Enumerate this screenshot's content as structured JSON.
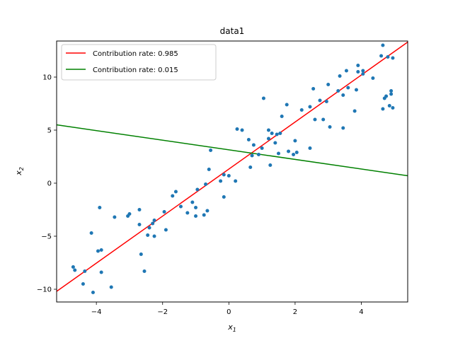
{
  "chart_data": {
    "type": "scatter",
    "title": "data1",
    "xlabel": "x",
    "xlabel_sub": "1",
    "ylabel": "x",
    "ylabel_sub": "2",
    "xlim": [
      -5.2,
      5.4
    ],
    "ylim": [
      -11.2,
      13.4
    ],
    "x_ticks": [
      -4,
      -2,
      0,
      2,
      4
    ],
    "y_ticks": [
      -10,
      -5,
      0,
      5,
      10
    ],
    "grid": false,
    "legend_position": "top-left",
    "colors": {
      "points": "#1f77b4",
      "line1": "#ff0000",
      "line2": "#008000"
    },
    "lines": [
      {
        "name": "Contribution rate: 0.985",
        "color": "#ff0000",
        "x": [
          -5.2,
          5.4
        ],
        "y": [
          -10.2,
          13.3
        ]
      },
      {
        "name": "Contribution rate: 0.015",
        "color": "#008000",
        "x": [
          -5.2,
          5.4
        ],
        "y": [
          5.5,
          0.7
        ]
      }
    ],
    "points": [
      [
        -4.7,
        -7.9
      ],
      [
        -4.65,
        -8.2
      ],
      [
        -4.4,
        -9.5
      ],
      [
        -4.35,
        -8.3
      ],
      [
        -4.15,
        -4.7
      ],
      [
        -4.1,
        -10.3
      ],
      [
        -3.95,
        -6.4
      ],
      [
        -3.9,
        -2.3
      ],
      [
        -3.85,
        -8.4
      ],
      [
        -3.85,
        -6.3
      ],
      [
        -3.55,
        -9.8
      ],
      [
        -3.45,
        -3.2
      ],
      [
        -3.05,
        -3.1
      ],
      [
        -3.0,
        -2.9
      ],
      [
        -2.7,
        -2.5
      ],
      [
        -2.7,
        -3.9
      ],
      [
        -2.65,
        -6.7
      ],
      [
        -2.55,
        -8.3
      ],
      [
        -2.45,
        -4.9
      ],
      [
        -2.4,
        -4.2
      ],
      [
        -2.3,
        -3.8
      ],
      [
        -2.25,
        -3.5
      ],
      [
        -2.25,
        -5.0
      ],
      [
        -1.95,
        -2.7
      ],
      [
        -1.9,
        -4.4
      ],
      [
        -1.7,
        -1.2
      ],
      [
        -1.6,
        -0.8
      ],
      [
        -1.45,
        -2.2
      ],
      [
        -1.25,
        -2.8
      ],
      [
        -1.1,
        -1.8
      ],
      [
        -1.0,
        -2.3
      ],
      [
        -1.0,
        -3.1
      ],
      [
        -0.95,
        -0.6
      ],
      [
        -0.75,
        -3.0
      ],
      [
        -0.7,
        -0.1
      ],
      [
        -0.65,
        -2.6
      ],
      [
        -0.6,
        1.3
      ],
      [
        -0.55,
        3.1
      ],
      [
        -0.25,
        0.2
      ],
      [
        -0.15,
        0.8
      ],
      [
        -0.15,
        -1.3
      ],
      [
        0.0,
        0.7
      ],
      [
        0.2,
        0.2
      ],
      [
        0.25,
        5.1
      ],
      [
        0.4,
        5.0
      ],
      [
        0.6,
        4.1
      ],
      [
        0.65,
        1.5
      ],
      [
        0.7,
        2.6
      ],
      [
        0.75,
        3.6
      ],
      [
        0.9,
        2.7
      ],
      [
        1.0,
        3.3
      ],
      [
        1.05,
        8.0
      ],
      [
        1.2,
        5.0
      ],
      [
        1.2,
        4.2
      ],
      [
        1.25,
        1.7
      ],
      [
        1.3,
        4.7
      ],
      [
        1.4,
        3.8
      ],
      [
        1.45,
        4.6
      ],
      [
        1.5,
        2.8
      ],
      [
        1.55,
        4.7
      ],
      [
        1.6,
        6.3
      ],
      [
        1.75,
        7.4
      ],
      [
        1.8,
        3.0
      ],
      [
        1.95,
        2.7
      ],
      [
        2.0,
        4.0
      ],
      [
        2.05,
        2.9
      ],
      [
        2.2,
        6.9
      ],
      [
        2.45,
        7.2
      ],
      [
        2.45,
        3.3
      ],
      [
        2.55,
        8.9
      ],
      [
        2.6,
        6.0
      ],
      [
        2.75,
        7.8
      ],
      [
        2.85,
        6.0
      ],
      [
        2.95,
        7.7
      ],
      [
        3.0,
        9.3
      ],
      [
        3.05,
        5.3
      ],
      [
        3.3,
        8.7
      ],
      [
        3.35,
        10.1
      ],
      [
        3.45,
        5.2
      ],
      [
        3.45,
        8.3
      ],
      [
        3.55,
        10.6
      ],
      [
        3.6,
        9.0
      ],
      [
        3.8,
        6.8
      ],
      [
        3.85,
        8.8
      ],
      [
        3.9,
        10.5
      ],
      [
        3.9,
        11.1
      ],
      [
        4.05,
        10.6
      ],
      [
        4.05,
        10.3
      ],
      [
        4.35,
        9.9
      ],
      [
        4.6,
        12.0
      ],
      [
        4.65,
        13.0
      ],
      [
        4.65,
        7.0
      ],
      [
        4.7,
        8.0
      ],
      [
        4.75,
        8.2
      ],
      [
        4.8,
        11.9
      ],
      [
        4.85,
        7.3
      ],
      [
        4.9,
        8.4
      ],
      [
        4.9,
        8.7
      ],
      [
        4.95,
        11.8
      ],
      [
        4.95,
        7.1
      ]
    ]
  }
}
